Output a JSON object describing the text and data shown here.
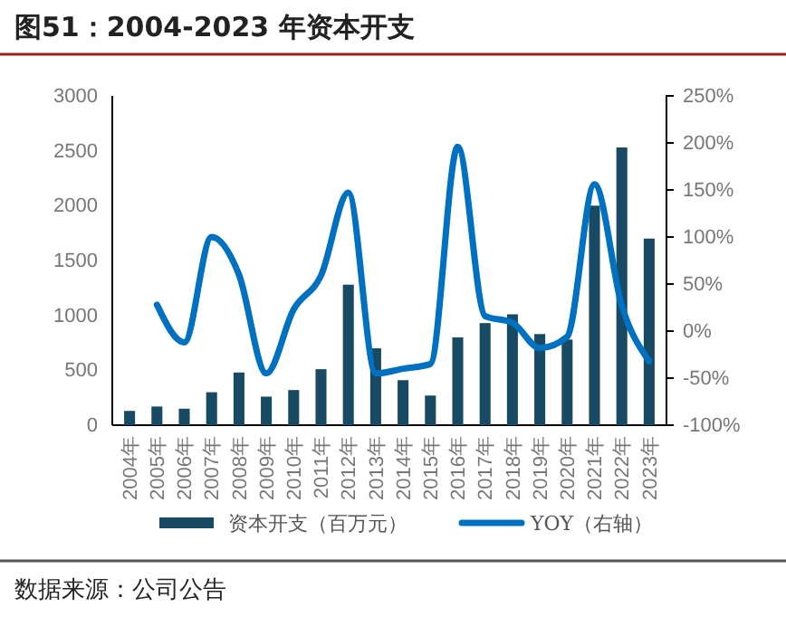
{
  "chart_data": {
    "type": "bar",
    "title": "图51：2004-2023 年资本开支",
    "categories": [
      "2004年",
      "2005年",
      "2006年",
      "2007年",
      "2008年",
      "2009年",
      "2010年",
      "2011年",
      "2012年",
      "2013年",
      "2014年",
      "2015年",
      "2016年",
      "2017年",
      "2018年",
      "2019年",
      "2020年",
      "2021年",
      "2022年",
      "2023年"
    ],
    "series": [
      {
        "name": "资本开支（百万元）",
        "color": "#184a63",
        "values": [
          130,
          170,
          150,
          300,
          480,
          260,
          320,
          510,
          1280,
          700,
          410,
          270,
          800,
          930,
          1010,
          830,
          780,
          2000,
          2530,
          1700
        ]
      },
      {
        "name": "YOY（右轴）",
        "type": "line",
        "axis": "y2",
        "color": "#0070c0",
        "values": [
          null,
          28,
          -12,
          100,
          60,
          -45,
          23,
          59,
          147,
          -45,
          -40,
          -35,
          196,
          16,
          9,
          -18,
          -6,
          156,
          27,
          -32
        ]
      }
    ],
    "ylim": [
      0,
      3000
    ],
    "yticks": [
      0,
      500,
      1000,
      1500,
      2000,
      2500,
      3000
    ],
    "y2lim": [
      -100,
      250
    ],
    "y2ticks": [
      {
        "value": -100,
        "label": "-100%"
      },
      {
        "value": -50,
        "label": "-50%"
      },
      {
        "value": 0,
        "label": "0%"
      },
      {
        "value": 50,
        "label": "50%"
      },
      {
        "value": 100,
        "label": "100%"
      },
      {
        "value": 150,
        "label": "150%"
      },
      {
        "value": 200,
        "label": "200%"
      },
      {
        "value": 250,
        "label": "250%"
      }
    ],
    "legend": "bottom",
    "annotations": [
      "数据来源：公司公告"
    ]
  }
}
